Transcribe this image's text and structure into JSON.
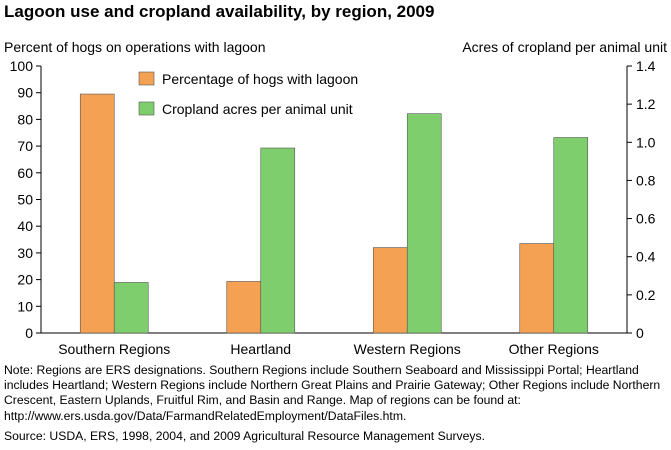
{
  "chart_data": {
    "type": "bar",
    "title": "Lagoon use and cropland availability, by region, 2009",
    "categories": [
      "Southern Regions",
      "Heartland",
      "Western Regions",
      "Other Regions"
    ],
    "series": [
      {
        "name": "Percentage of hogs with lagoon",
        "axis": "left",
        "color": "#f4a154",
        "values": [
          89.5,
          19.3,
          32.0,
          33.5
        ]
      },
      {
        "name": "Cropland acres per animal unit",
        "axis": "right",
        "color": "#7fce6e",
        "values": [
          0.265,
          0.97,
          1.15,
          1.025
        ]
      }
    ],
    "ylabel_left": "Percent of hogs on operations with lagoon",
    "ylabel_right": "Acres of cropland per animal unit",
    "ylim_left": [
      0,
      100
    ],
    "yticks_left": [
      "0",
      "10",
      "20",
      "30",
      "40",
      "50",
      "60",
      "70",
      "80",
      "90",
      "100"
    ],
    "ylim_right": [
      0,
      1.4
    ],
    "yticks_right": [
      "0",
      "0.2",
      "0.4",
      "0.6",
      "0.8",
      "1.0",
      "1.2",
      "1.4"
    ],
    "grid": false,
    "legend_position": "top-left"
  },
  "note": "Note: Regions are ERS designations. Southern Regions include Southern Seaboard and Mississippi Portal; Heartland includes Heartland; Western Regions include Northern Great Plains and Prairie Gateway; Other Regions include Northern Crescent, Eastern Uplands, Fruitful Rim, and Basin and Range. Map of regions can be found at: http://www.ers.usda.gov/Data/FarmandRelatedEmployment/DataFiles.htm.",
  "source": "Source: USDA, ERS, 1998, 2004, and 2009 Agricultural Resource Management Surveys."
}
